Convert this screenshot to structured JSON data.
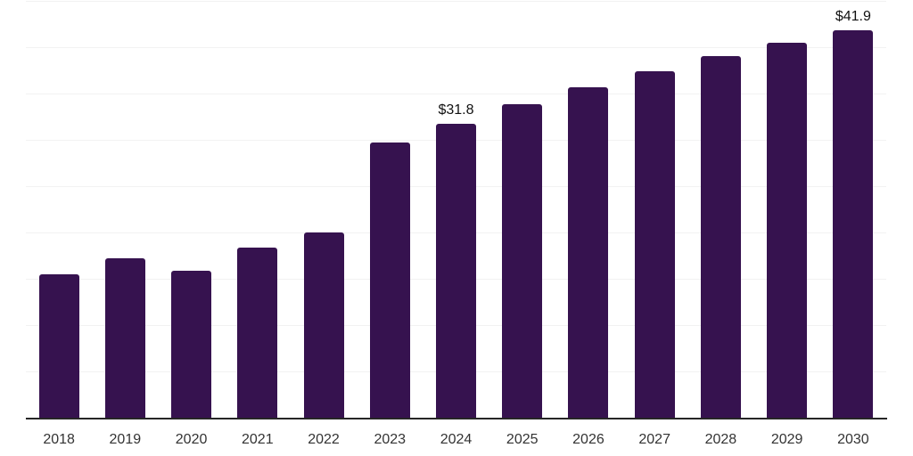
{
  "chart_data": {
    "type": "bar",
    "title": "",
    "xlabel": "",
    "ylabel": "",
    "categories": [
      "2018",
      "2019",
      "2020",
      "2021",
      "2022",
      "2023",
      "2024",
      "2025",
      "2026",
      "2027",
      "2028",
      "2029",
      "2030"
    ],
    "values": [
      15.6,
      17.3,
      15.9,
      18.4,
      20.1,
      29.8,
      31.8,
      33.9,
      35.7,
      37.5,
      39.1,
      40.5,
      41.9
    ],
    "data_labels": [
      null,
      null,
      null,
      null,
      null,
      null,
      "$31.8",
      null,
      null,
      null,
      null,
      null,
      "$41.9"
    ],
    "ylim": [
      0,
      45
    ],
    "grid_step": 5,
    "grid": "horizontal-only",
    "legend": "none",
    "y_axis_labels": "none",
    "colors": {
      "bar": "#36124f",
      "gridline": "#f2f2f2",
      "axis": "#262626",
      "tick_label": "#333333",
      "data_label": "#111111",
      "background": "#ffffff"
    }
  }
}
